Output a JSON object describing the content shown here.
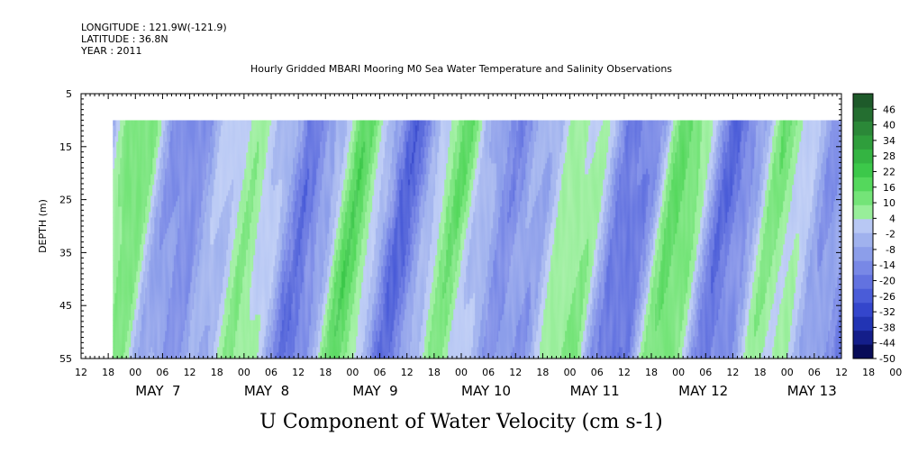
{
  "header": {
    "longitude": "LONGITUDE : 121.9W(-121.9)",
    "latitude": "LATITUDE : 36.8N",
    "year": "YEAR : 2011",
    "title": "Hourly Gridded MBARI Mooring M0 Sea Water Temperature and Salinity Observations"
  },
  "chart_data": {
    "type": "heatmap",
    "title": "U Component of Water Velocity (cm s-1)",
    "ylabel": "DEPTH (m)",
    "xlabel": "",
    "x_range": [
      "2011-05-06T12:00",
      "2011-05-13T12:00"
    ],
    "data_start": "2011-05-06T19:00",
    "data_end": "2011-05-13T12:00",
    "ylim": [
      55,
      5
    ],
    "data_depth_range": [
      10,
      55
    ],
    "y_ticks": [
      "5",
      "15",
      "25",
      "35",
      "45",
      "55"
    ],
    "x_hour_ticks": [
      "12",
      "18",
      "00",
      "06",
      "12",
      "18",
      "00",
      "06",
      "12",
      "18",
      "00",
      "06",
      "12",
      "18",
      "00",
      "06",
      "12",
      "18",
      "00",
      "06",
      "12",
      "18",
      "00",
      "06",
      "12",
      "18",
      "00",
      "06",
      "12",
      "18",
      "00"
    ],
    "x_date_labels": [
      "MAY  7",
      "MAY  8",
      "MAY  9",
      "MAY 10",
      "MAY 11",
      "MAY 12",
      "MAY 13"
    ],
    "colorbar_ticks": [
      "46",
      "40",
      "34",
      "28",
      "22",
      "16",
      "10",
      "4",
      "-2",
      "-8",
      "-14",
      "-20",
      "-26",
      "-32",
      "-38",
      "-44",
      "-50"
    ],
    "colorbar_range": [
      -50,
      52
    ],
    "colorbar_colors": [
      "#1e5a2a",
      "#246e30",
      "#2b8838",
      "#2f9e3c",
      "#34b442",
      "#3cc84a",
      "#54d85c",
      "#74e478",
      "#98ee9a",
      "#b8c8f4",
      "#a0b2ee",
      "#8c9eea",
      "#7888e6",
      "#6272e0",
      "#4a5cd8",
      "#3446cc",
      "#2234b4",
      "#141e8a",
      "#080c58"
    ],
    "series": [
      {
        "name": "",
        "note": "U component of water velocity, alternating bands between approximately -20 and +20 cm/s"
      }
    ]
  }
}
